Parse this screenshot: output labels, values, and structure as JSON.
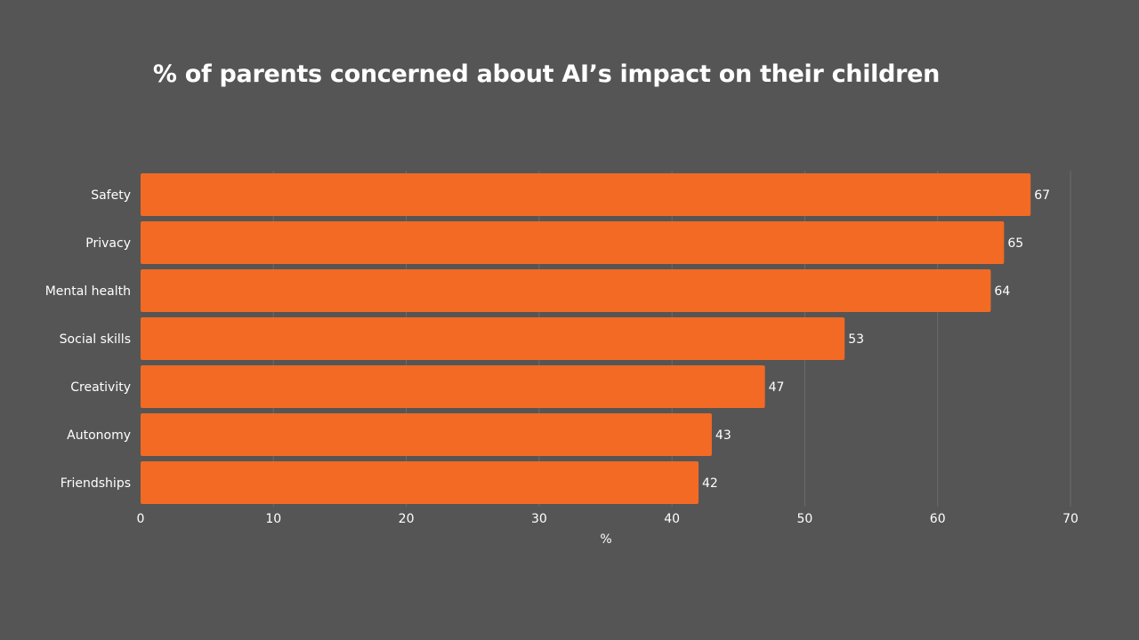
{
  "chart_data": {
    "type": "bar",
    "orientation": "horizontal",
    "title": "% of parents concerned about AI’s impact on their children",
    "xlabel": "%",
    "ylabel": "",
    "categories": [
      "Safety",
      "Privacy",
      "Mental health",
      "Social skills",
      "Creativity",
      "Autonomy",
      "Friendships"
    ],
    "values": [
      67,
      65,
      64,
      53,
      47,
      43,
      42
    ],
    "xlim": [
      0,
      70
    ],
    "xticks": [
      0,
      10,
      20,
      30,
      40,
      50,
      60,
      70
    ],
    "grid": true,
    "data_labels": true,
    "legend": "none"
  },
  "colors": {
    "background": "#555555",
    "bar": "#F26A24",
    "grid": "#6b6b6b",
    "text": "#ffffff"
  }
}
